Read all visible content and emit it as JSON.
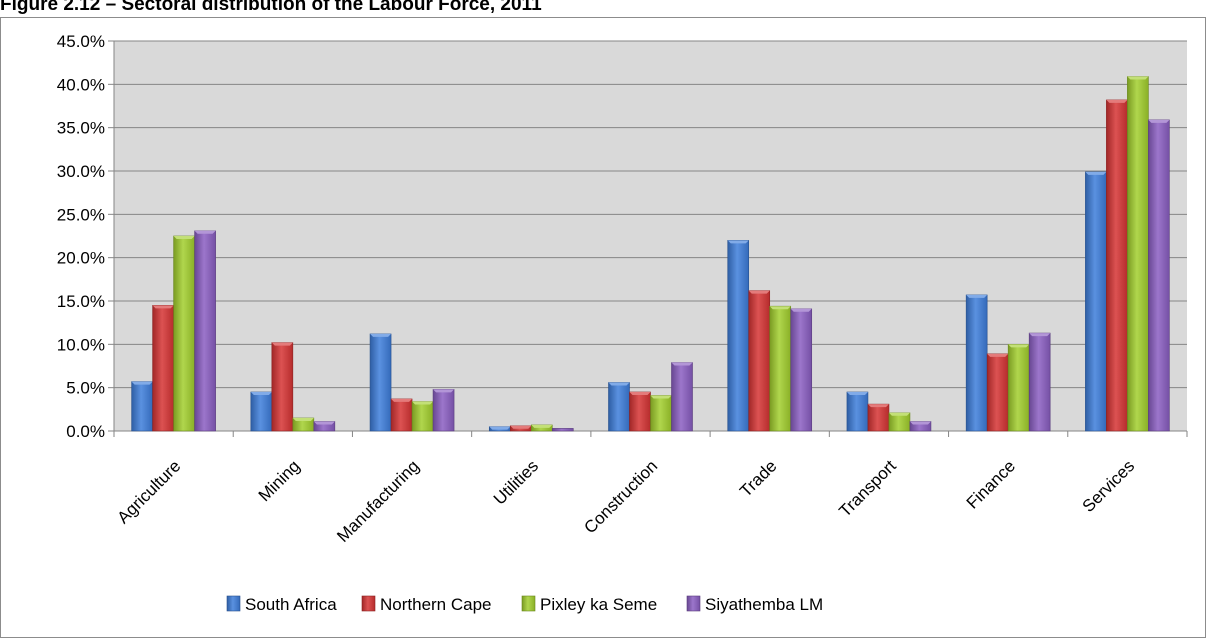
{
  "figure_title": "Figure 2.12 – Sectoral distribution of the Labour Force, 2011",
  "chart_data": {
    "type": "bar",
    "title": "",
    "xlabel": "",
    "ylabel": "",
    "ylim": [
      0,
      45
    ],
    "y_ticks": [
      "0.0%",
      "5.0%",
      "10.0%",
      "15.0%",
      "20.0%",
      "25.0%",
      "30.0%",
      "35.0%",
      "40.0%",
      "45.0%"
    ],
    "grid": true,
    "legend_position": "bottom",
    "categories": [
      "Agriculture",
      "Mining",
      "Manufacturing",
      "Utilities",
      "Construction",
      "Trade",
      "Transport",
      "Finance",
      "Services"
    ],
    "series": [
      {
        "name": "South Africa",
        "color": "#3d7ddb",
        "values": [
          5.7,
          4.5,
          11.2,
          0.5,
          5.6,
          22.0,
          4.5,
          15.7,
          29.9
        ]
      },
      {
        "name": "Northern Cape",
        "color": "#d63434",
        "values": [
          14.5,
          10.2,
          3.7,
          0.6,
          4.5,
          16.2,
          3.1,
          8.9,
          38.2
        ]
      },
      {
        "name": "Pixley ka Seme",
        "color": "#a2cf2d",
        "values": [
          22.5,
          1.5,
          3.4,
          0.7,
          4.1,
          14.4,
          2.1,
          10.0,
          40.9
        ]
      },
      {
        "name": "Siyathemba LM",
        "color": "#8a5ec2",
        "values": [
          23.1,
          1.1,
          4.8,
          0.3,
          7.9,
          14.1,
          1.1,
          11.3,
          35.9
        ]
      }
    ],
    "plot_background": "#d9d9d9"
  }
}
